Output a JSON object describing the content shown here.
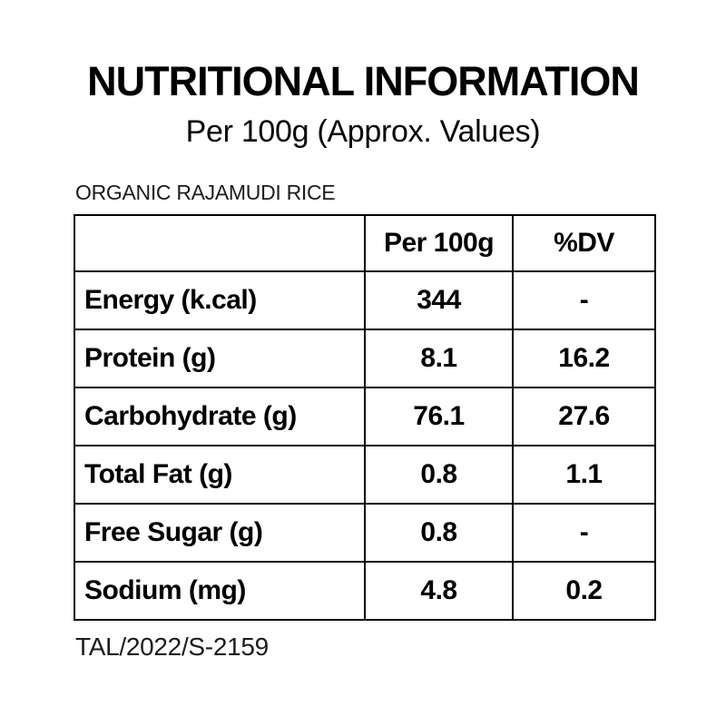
{
  "header": {
    "title": "NUTRITIONAL INFORMATION",
    "subtitle": "Per 100g (Approx. Values)"
  },
  "product": {
    "name": "ORGANIC RAJAMUDI RICE"
  },
  "table": {
    "columns": [
      "",
      "Per 100g",
      "%DV"
    ],
    "rows": [
      {
        "label": "Energy (k.cal)",
        "per_100g": "344",
        "dv": "-"
      },
      {
        "label": "Protein (g)",
        "per_100g": "8.1",
        "dv": "16.2"
      },
      {
        "label": "Carbohydrate (g)",
        "per_100g": "76.1",
        "dv": "27.6"
      },
      {
        "label": "Total Fat (g)",
        "per_100g": "0.8",
        "dv": "1.1"
      },
      {
        "label": "Free Sugar (g)",
        "per_100g": "0.8",
        "dv": "-"
      },
      {
        "label": "Sodium (mg)",
        "per_100g": "4.8",
        "dv": "0.2"
      }
    ]
  },
  "footer": {
    "license_code": "TAL/2022/S-2159"
  },
  "colors": {
    "background": "#ffffff",
    "primary_text": "#000000",
    "secondary_text": "#1c1c1c",
    "table_border": "#000000"
  }
}
